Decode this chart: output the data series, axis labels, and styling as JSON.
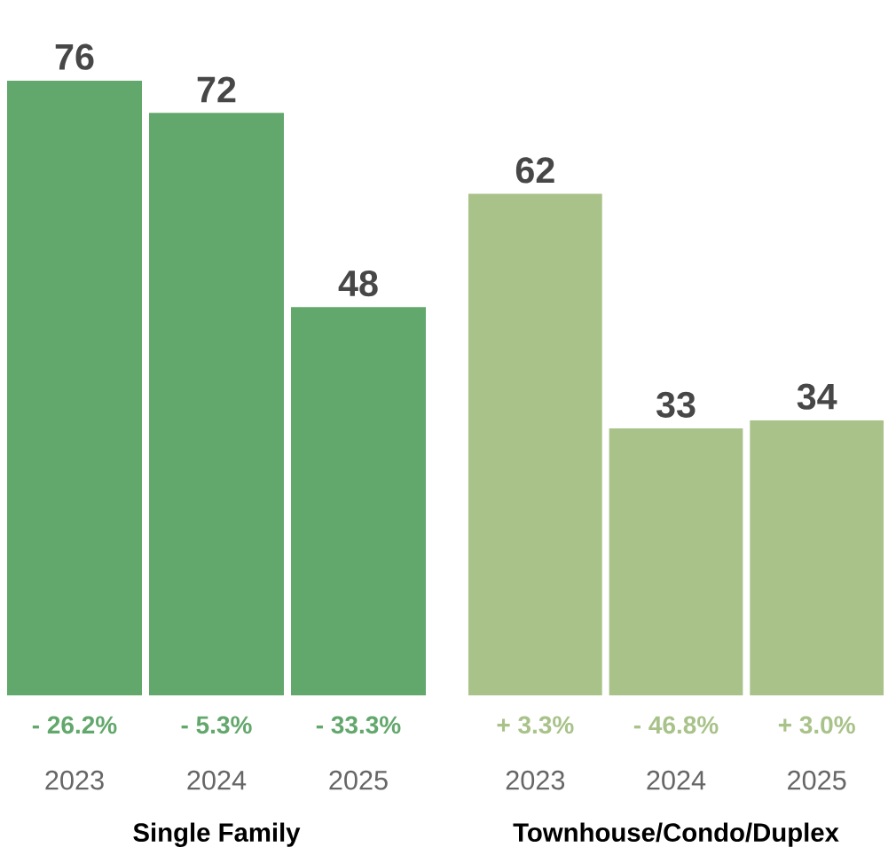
{
  "chart_data": [
    {
      "type": "bar",
      "categories": [
        "2023",
        "2024",
        "2025"
      ],
      "values": [
        76,
        72,
        48
      ],
      "color": "#62a76b",
      "data_labels": true,
      "xlabel": "Single Family",
      "annotations": [
        "- 26.2%",
        "- 5.3%",
        "- 33.3%"
      ]
    },
    {
      "type": "bar",
      "categories": [
        "2023",
        "2024",
        "2025"
      ],
      "values": [
        62,
        33,
        34
      ],
      "color": "#a8c289",
      "data_labels": true,
      "xlabel": "Townhouse/Condo/Duplex",
      "annotations": [
        "+ 3.3%",
        "- 46.8%",
        "+ 3.0%"
      ]
    }
  ]
}
